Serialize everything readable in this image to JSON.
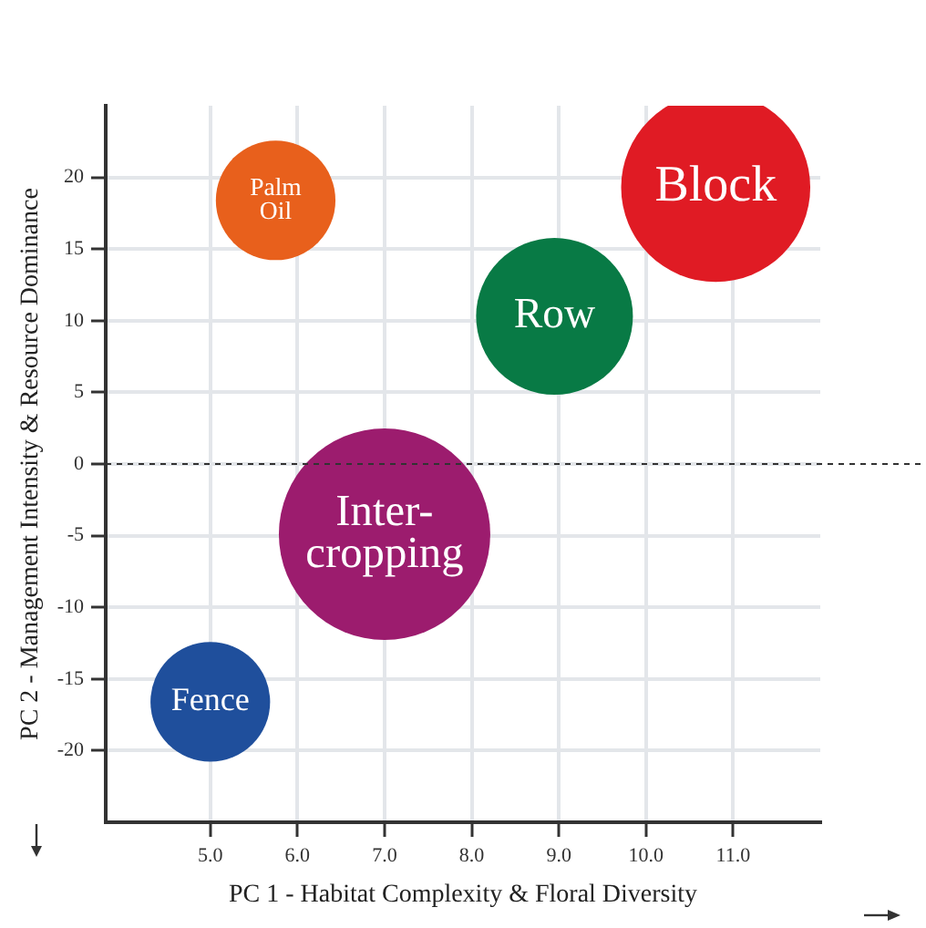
{
  "chart_data": {
    "type": "bubble",
    "xlabel": "PC 1 - Habitat Complexity & Floral Diversity",
    "ylabel": "PC 2 - Management Intensity & Resource Dominance",
    "xlim": [
      3.8,
      12.0
    ],
    "xticks": [
      {
        "value": 5,
        "label": "5.0"
      },
      {
        "value": 6,
        "label": "6.0"
      },
      {
        "value": 7,
        "label": "7.0"
      },
      {
        "value": 8,
        "label": "8.0"
      },
      {
        "value": 9,
        "label": "9.0"
      },
      {
        "value": 10,
        "label": "10.0"
      },
      {
        "value": 11,
        "label": "11.0"
      }
    ],
    "ylim": [
      -25,
      25
    ],
    "yticks": [
      -20,
      -15,
      -10,
      -5,
      0,
      5,
      10,
      15,
      20
    ],
    "series": [
      {
        "name": "Palm Oil",
        "color": "#e8601c",
        "x": [
          5.75
        ],
        "values": [
          18.4
        ],
        "sizes": [
          0.32
        ]
      },
      {
        "name": "Block",
        "color": "#e01b24",
        "x": [
          10.8
        ],
        "values": [
          19.3
        ],
        "sizes": [
          0.8
        ]
      },
      {
        "name": "Row",
        "color": "#087a45",
        "x": [
          8.95
        ],
        "values": [
          10.3
        ],
        "sizes": [
          0.55
        ]
      },
      {
        "name": "Inter-cropping",
        "color": "#9c1c6e",
        "x": [
          7.0
        ],
        "values": [
          -4.9
        ],
        "sizes": [
          1
        ]
      },
      {
        "name": "Fence",
        "color": "#1f4f9c",
        "x": [
          5.0
        ],
        "values": [
          -16.6
        ],
        "sizes": [
          0.32
        ]
      }
    ],
    "ref_lines": [
      {
        "axis": "y",
        "value": 0,
        "line_style": "dashed",
        "color": "#333333"
      }
    ],
    "grid": true,
    "legend": false
  }
}
